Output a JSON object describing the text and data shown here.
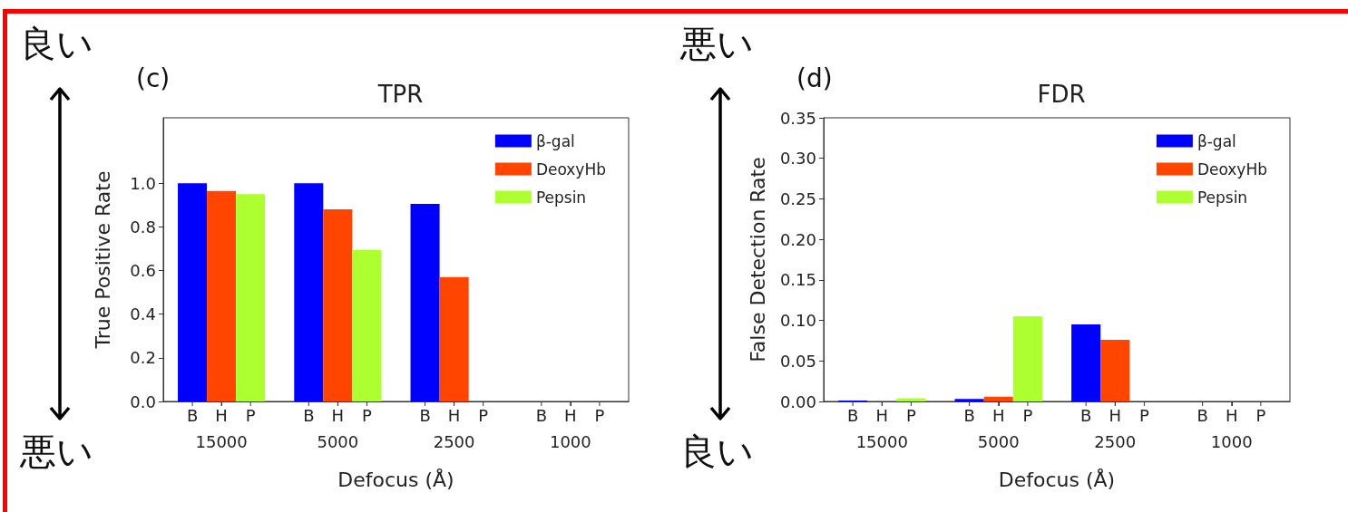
{
  "chart_data": [
    {
      "type": "bar",
      "title": "TPR",
      "xlabel": "Defocus (Å)",
      "ylabel": "True Positive Rate",
      "categories": [
        "15000",
        "5000",
        "2500",
        "1000"
      ],
      "series": [
        {
          "name": "β-gal",
          "color": "#0000ff",
          "values": [
            1.0,
            1.0,
            0.905,
            0
          ]
        },
        {
          "name": "DeoxyHb",
          "color": "#ff4500",
          "values": [
            0.965,
            0.88,
            0.57,
            0
          ]
        },
        {
          "name": "Pepsin",
          "color": "#adff2f",
          "values": [
            0.95,
            0.695,
            0,
            0
          ]
        }
      ],
      "ylim": [
        0,
        1.3
      ],
      "yticks": [
        {
          "value": 0,
          "label": "0.0"
        },
        {
          "value": 0.2,
          "label": "0.2"
        },
        {
          "value": 0.4,
          "label": "0.4"
        },
        {
          "value": 0.6,
          "label": "0.6"
        },
        {
          "value": 0.8,
          "label": "0.8"
        },
        {
          "value": 1,
          "label": "1.0"
        }
      ],
      "legend": "top right",
      "grid": false,
      "annotations": [
        "(c)",
        "良い",
        "悪い",
        "B",
        "H",
        "P",
        "B",
        "H",
        "P",
        "B",
        "H",
        "P",
        "B",
        "H",
        "P"
      ]
    },
    {
      "type": "bar",
      "title": "FDR",
      "xlabel": "Defocus (Å)",
      "ylabel": "False Detection Rate",
      "categories": [
        "15000",
        "5000",
        "2500",
        "1000"
      ],
      "series": [
        {
          "name": "β-gal",
          "color": "#0000ff",
          "values": [
            0.001,
            0.003,
            0.095,
            0
          ]
        },
        {
          "name": "DeoxyHb",
          "color": "#ff4500",
          "values": [
            0,
            0.006,
            0.076,
            0
          ]
        },
        {
          "name": "Pepsin",
          "color": "#adff2f",
          "values": [
            0.004,
            0.105,
            0,
            0
          ]
        }
      ],
      "ylim": [
        0,
        0.35
      ],
      "yticks": [
        {
          "value": 0,
          "label": "0.00"
        },
        {
          "value": 0.05,
          "label": "0.05"
        },
        {
          "value": 0.1,
          "label": "0.10"
        },
        {
          "value": 0.15,
          "label": "0.15"
        },
        {
          "value": 0.2,
          "label": "0.20"
        },
        {
          "value": 0.25,
          "label": "0.25"
        },
        {
          "value": 0.3,
          "label": "0.30"
        },
        {
          "value": 0.35,
          "label": "0.35"
        }
      ],
      "legend": "top right",
      "grid": false,
      "annotations": [
        "(d)",
        "悪い",
        "良い",
        "B",
        "H",
        "P",
        "B",
        "H",
        "P",
        "B",
        "H",
        "P",
        "B",
        "H",
        "P"
      ]
    }
  ]
}
